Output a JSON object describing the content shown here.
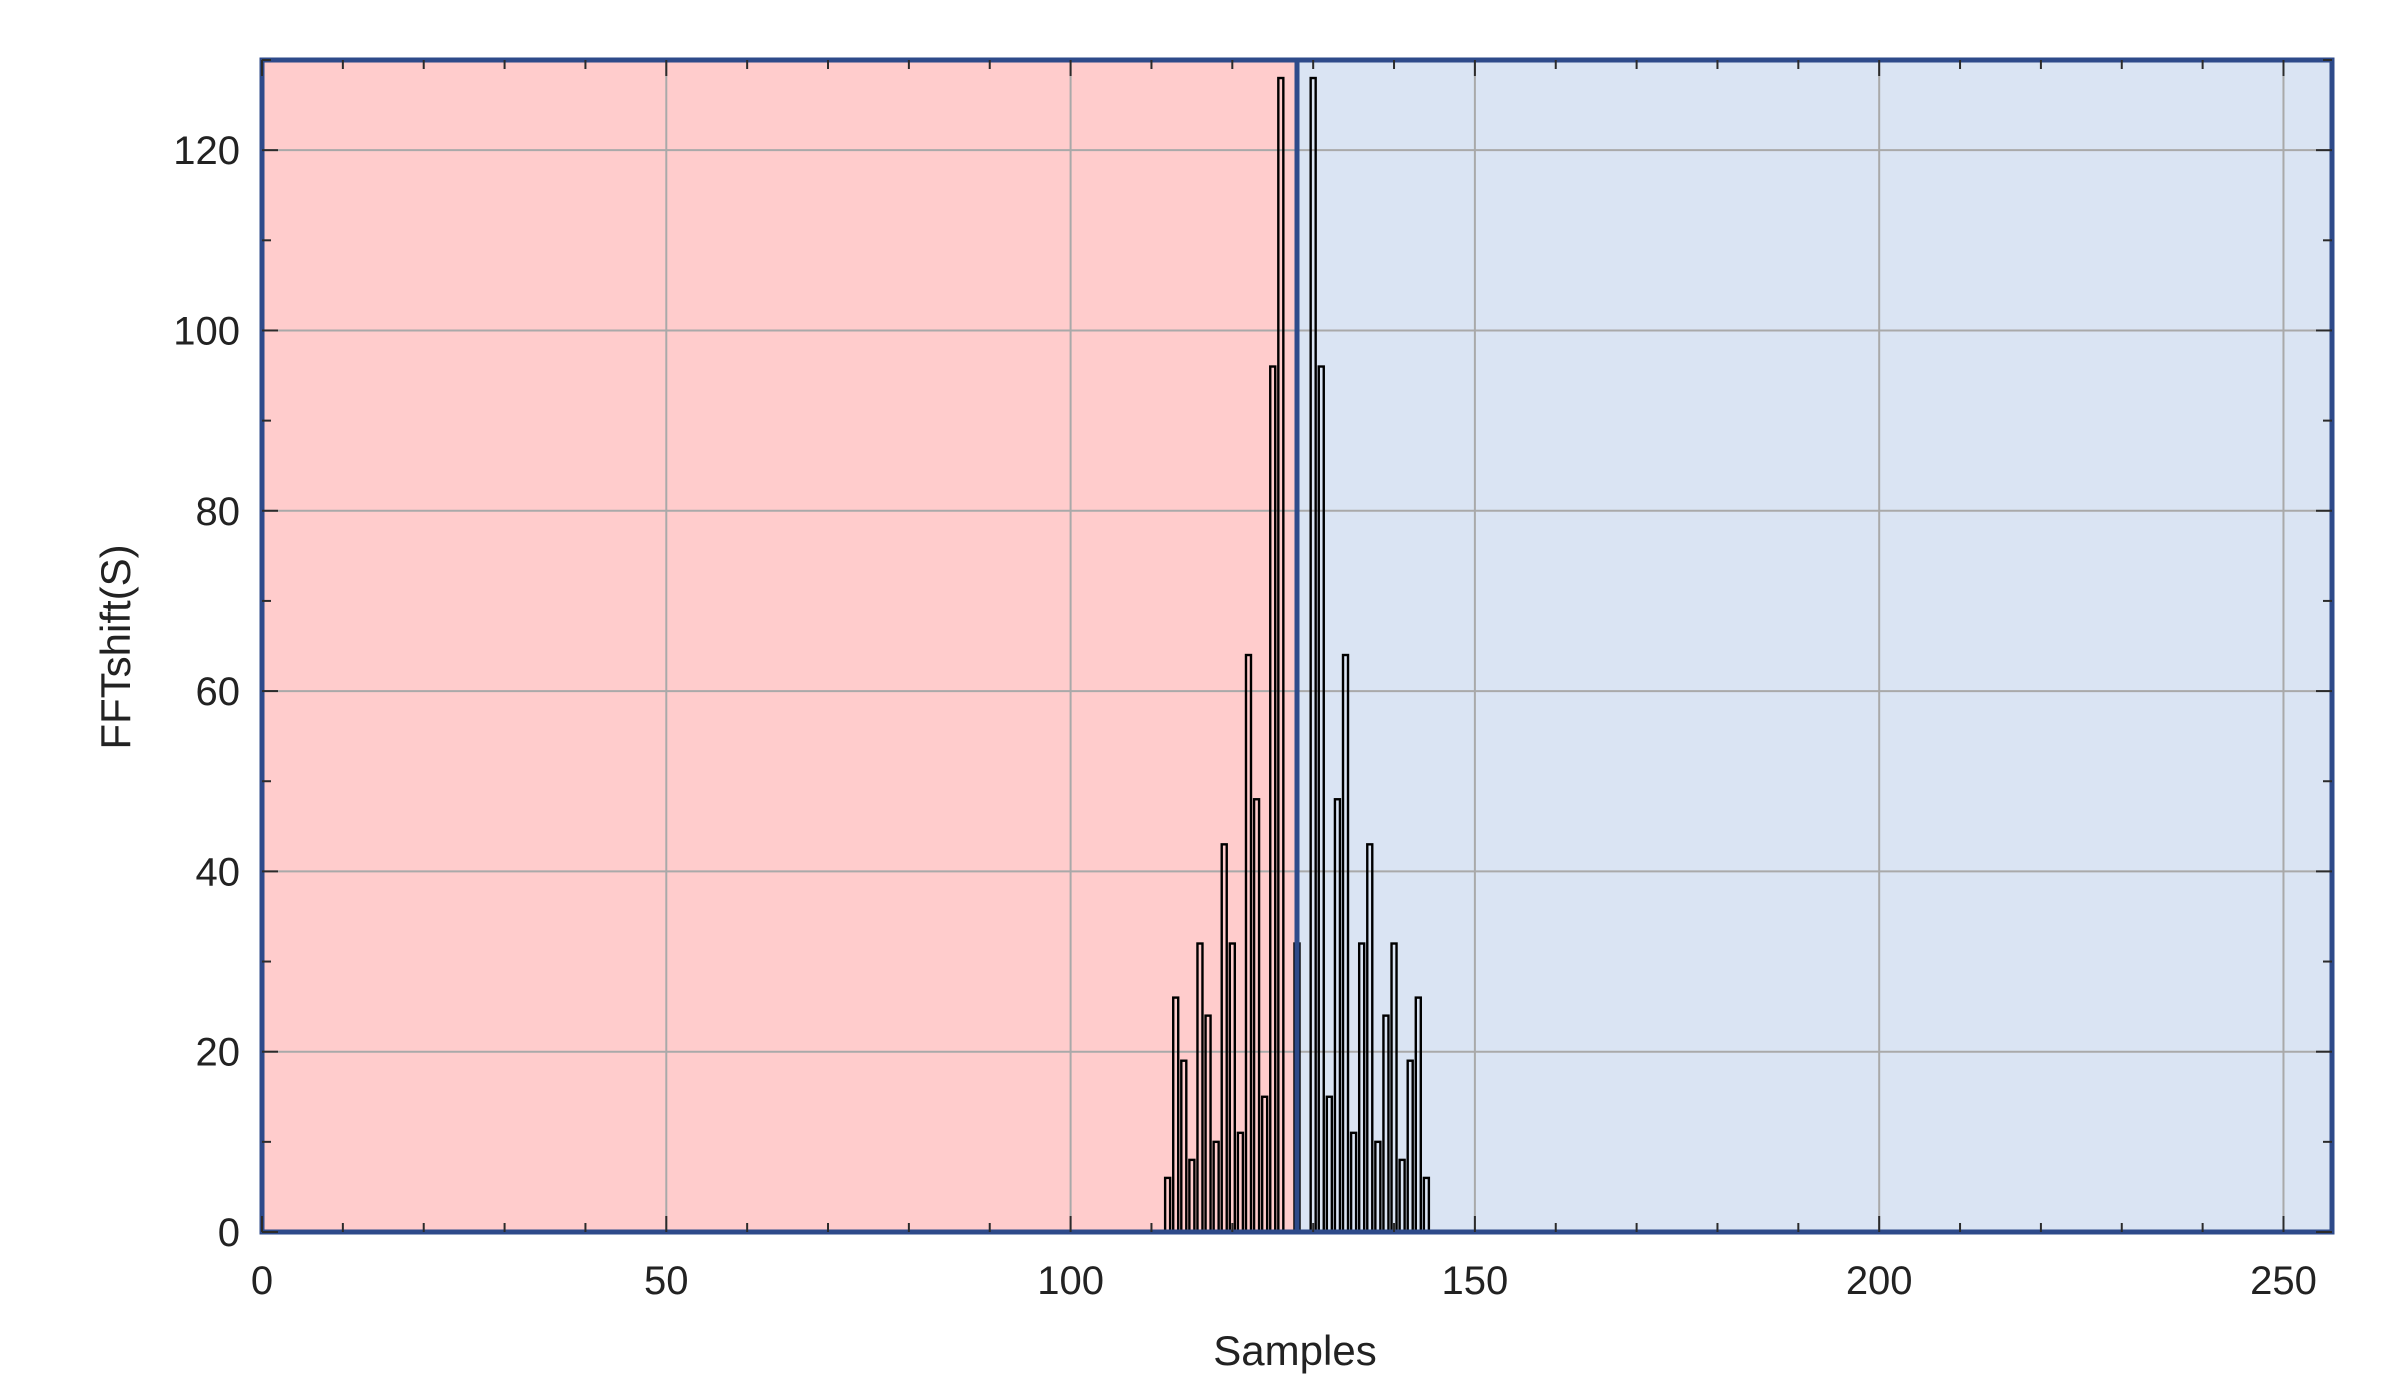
{
  "chart_data": {
    "type": "bar",
    "title": "",
    "xlabel": "Samples",
    "ylabel": "FFTshift(S)",
    "xlim": [
      0,
      256
    ],
    "ylim": [
      0,
      130
    ],
    "xticks": [
      0,
      50,
      100,
      150,
      200,
      250
    ],
    "yticks": [
      0,
      20,
      40,
      60,
      80,
      100,
      120
    ],
    "xtick_labels": [
      "0",
      "50",
      "100",
      "150",
      "200",
      "250"
    ],
    "ytick_labels": [
      "0",
      "20",
      "40",
      "60",
      "80",
      "100",
      "120"
    ],
    "grid": true,
    "regions": [
      {
        "x_range": [
          0,
          128
        ],
        "color": "#ffcccc"
      },
      {
        "x_range": [
          128,
          256
        ],
        "color": "#dae4f3"
      }
    ],
    "series": [
      {
        "color": "#000000",
        "x": [
          112,
          113,
          114,
          115,
          116,
          117,
          118,
          119,
          120,
          121,
          122,
          123,
          124,
          125,
          126,
          128,
          130,
          131,
          132,
          133,
          134,
          135,
          136,
          137,
          138,
          139,
          140,
          141,
          142,
          143,
          144
        ],
        "values": [
          6,
          26,
          19,
          8,
          32,
          24,
          10,
          43,
          32,
          11,
          64,
          48,
          15,
          96,
          128,
          32,
          128,
          96,
          15,
          48,
          64,
          11,
          32,
          43,
          10,
          24,
          32,
          8,
          19,
          26,
          6
        ]
      }
    ]
  }
}
